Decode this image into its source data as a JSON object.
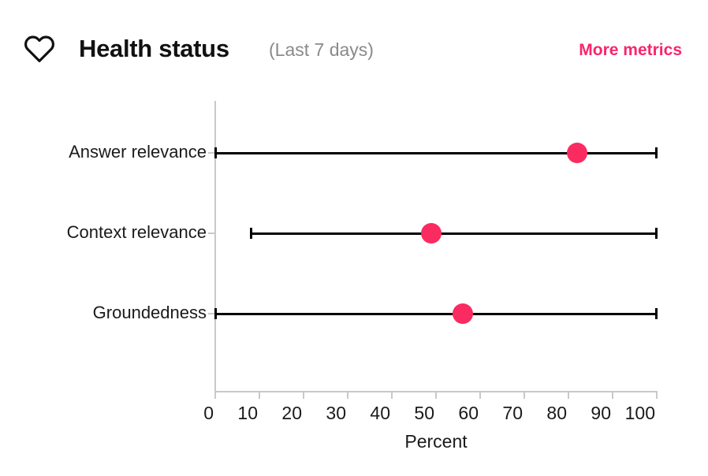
{
  "header": {
    "icon": "heart-icon",
    "title": "Health status",
    "subtitle": "(Last 7 days)",
    "more_link": "More metrics"
  },
  "colors": {
    "accent_dot": "#fa2b60",
    "link": "#f9256b",
    "axis_gray": "#c9c9c9",
    "range_line": "#000000",
    "text": "#1a1a1a",
    "muted": "#8a8a8a"
  },
  "chart_data": {
    "type": "scatter",
    "subtype": "horizontal-dot-plot-with-range-whiskers",
    "title": "Health status",
    "period": "Last 7 days",
    "categories": [
      "Answer relevance",
      "Context relevance",
      "Groundedness"
    ],
    "points": [
      {
        "category": "Answer relevance",
        "value": 82,
        "range_low": 0,
        "range_high": 100
      },
      {
        "category": "Context relevance",
        "value": 49,
        "range_low": 8,
        "range_high": 100
      },
      {
        "category": "Groundedness",
        "value": 56,
        "range_low": 0,
        "range_high": 100
      }
    ],
    "xlabel": "Percent",
    "xlim": [
      0,
      100
    ],
    "xticks": [
      0,
      10,
      20,
      30,
      40,
      50,
      60,
      70,
      80,
      90,
      100
    ],
    "grid": false,
    "legend": false
  }
}
